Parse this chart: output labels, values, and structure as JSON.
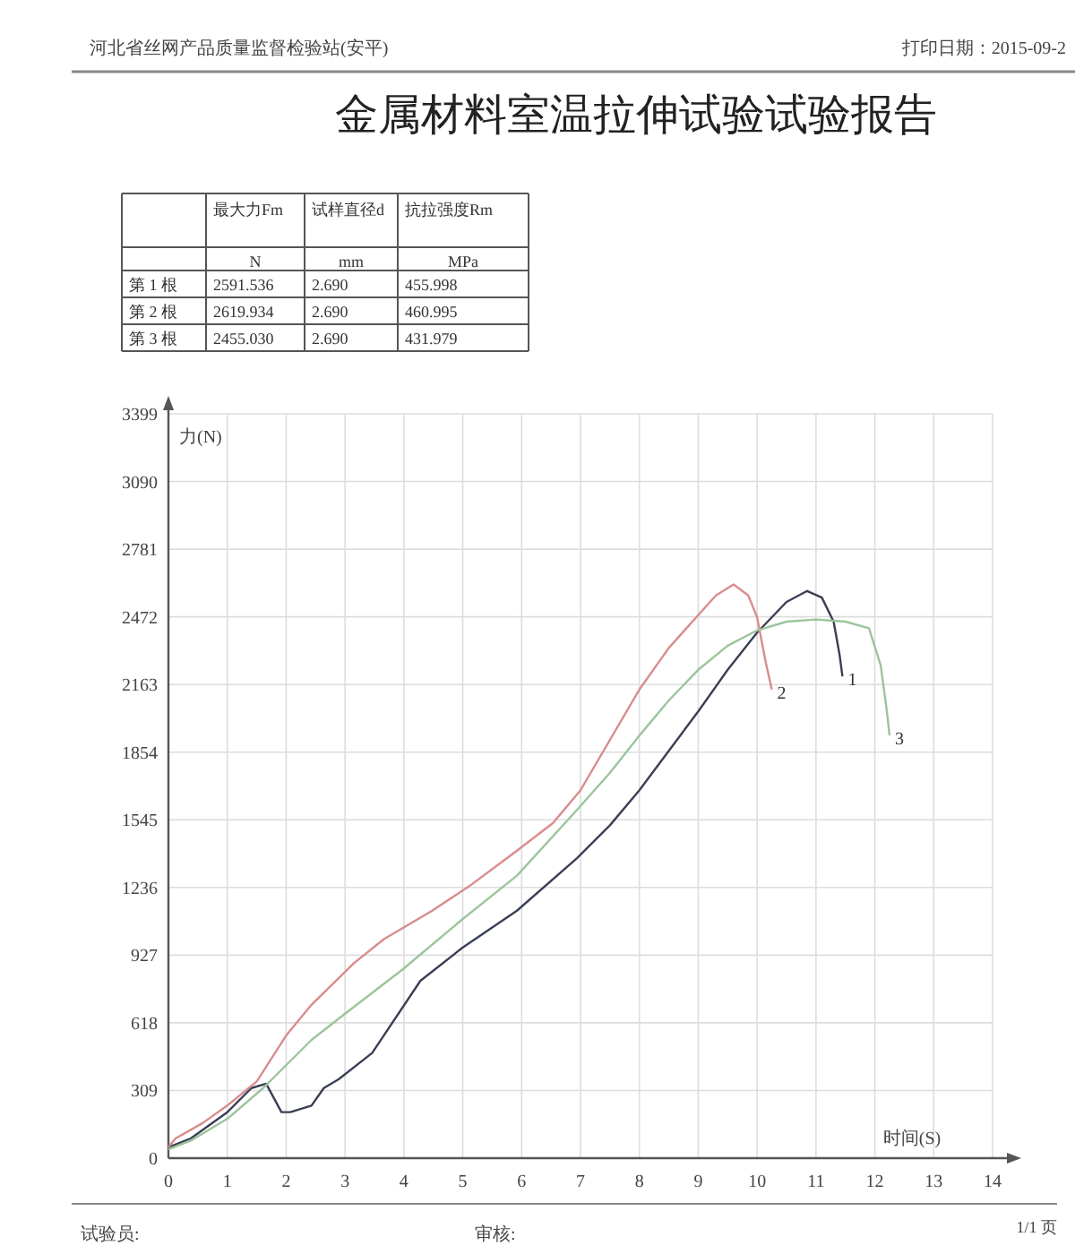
{
  "chart_data": {
    "type": "line",
    "title": "金属材料室温拉伸试验试验报告",
    "xlabel": "时间(S)",
    "ylabel": "力(N)",
    "xlim": [
      0,
      14
    ],
    "xticks": [
      0,
      1,
      2,
      3,
      4,
      5,
      6,
      7,
      8,
      9,
      10,
      11,
      12,
      13,
      14
    ],
    "ylim": [
      0,
      3399
    ],
    "yticks": [
      0,
      309,
      618,
      927,
      1236,
      1545,
      1854,
      2163,
      2472,
      2781,
      3090,
      3399
    ],
    "grid": true,
    "series": [
      {
        "name": "1",
        "color": "#3a3f55",
        "x": [
          0,
          0.38,
          1.0,
          1.41,
          1.66,
          1.92,
          2.07,
          2.43,
          2.64,
          2.89,
          3.46,
          4.28,
          4.99,
          5.92,
          6.94,
          7.5,
          8,
          8.5,
          9,
          9.5,
          10,
          10.5,
          10.85,
          11.1,
          11.3,
          11.4,
          11.45
        ],
        "values": [
          50,
          90,
          210,
          320,
          340,
          210,
          210,
          240,
          320,
          360,
          480,
          810,
          960,
          1130,
          1370,
          1520,
          1680,
          1860,
          2040,
          2230,
          2400,
          2540,
          2590,
          2560,
          2450,
          2300,
          2200
        ]
      },
      {
        "name": "2",
        "color": "#d98c8c",
        "x": [
          0,
          0.12,
          0.58,
          1.0,
          1.5,
          2.0,
          2.43,
          3.15,
          3.66,
          4.48,
          5.1,
          5.9,
          6.53,
          7.0,
          8.0,
          8.5,
          9.0,
          9.3,
          9.6,
          9.85,
          10.0,
          10.15,
          10.25
        ],
        "values": [
          50,
          90,
          160,
          240,
          350,
          560,
          700,
          890,
          1000,
          1130,
          1240,
          1400,
          1530,
          1680,
          2140,
          2330,
          2480,
          2570,
          2620,
          2570,
          2470,
          2260,
          2140
        ]
      },
      {
        "name": "3",
        "color": "#9cc49c",
        "x": [
          0,
          0.38,
          1.0,
          1.61,
          2.43,
          3.05,
          3.97,
          4.99,
          5.92,
          6.94,
          7.5,
          8,
          8.5,
          9,
          9.5,
          10,
          10.5,
          11,
          11.5,
          11.9,
          12.1,
          12.2,
          12.25
        ],
        "values": [
          40,
          80,
          180,
          320,
          540,
          670,
          860,
          1090,
          1290,
          1590,
          1760,
          1930,
          2090,
          2230,
          2340,
          2410,
          2450,
          2460,
          2450,
          2420,
          2250,
          2050,
          1930
        ]
      }
    ],
    "annotations": [
      "河北省丝网产品质量监督检验站(安平)",
      "打印日期：2015-09-2",
      "最大力Fm",
      "试样直径d",
      "抗拉强度Rm",
      "N",
      "mm",
      "MPa",
      "第 1 根",
      "2591.536",
      "2.690",
      "455.998",
      "第 2 根",
      "2619.934",
      "2.690",
      "460.995",
      "第 3 根",
      "2455.030",
      "2.690",
      "431.979",
      "试验员:",
      "审核:",
      "1/1 页"
    ]
  }
}
